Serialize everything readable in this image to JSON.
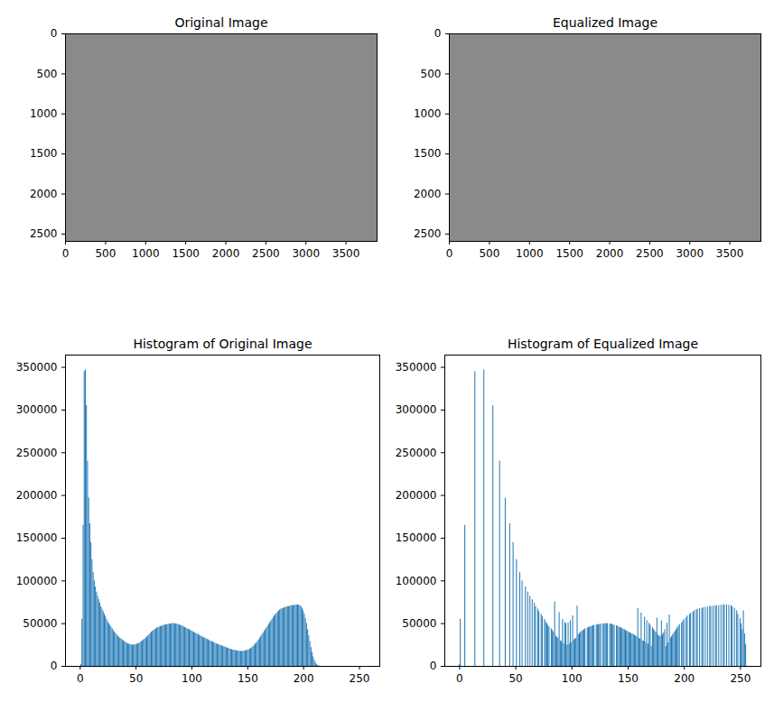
{
  "chart_data": [
    {
      "type": "image",
      "title": "Original Image",
      "xlim": [
        -0.5,
        3887.5
      ],
      "ylim": [
        2591.5,
        -0.5
      ],
      "xticks": [
        0,
        500,
        1000,
        1500,
        2000,
        2500,
        3000,
        3500
      ],
      "yticks": [
        0,
        500,
        1000,
        1500,
        2000,
        2500
      ]
    },
    {
      "type": "image",
      "title": "Equalized Image",
      "xlim": [
        -0.5,
        3887.5
      ],
      "ylim": [
        2591.5,
        -0.5
      ],
      "xticks": [
        0,
        500,
        1000,
        1500,
        2000,
        2500,
        3000,
        3500
      ],
      "yticks": [
        0,
        500,
        1000,
        1500,
        2000,
        2500
      ]
    },
    {
      "type": "bar",
      "title": "Histogram of Original Image",
      "color": "#1f77b4",
      "xlim": [
        -13.17,
        268.17
      ],
      "ylim": [
        0,
        364350
      ],
      "xticks": [
        0,
        50,
        100,
        150,
        200,
        250
      ],
      "yticks": [
        0,
        50000,
        100000,
        150000,
        200000,
        250000,
        300000,
        350000
      ],
      "x": [
        0,
        1,
        2,
        3,
        4,
        5,
        6,
        7,
        8,
        9,
        10,
        11,
        12,
        13,
        14,
        15,
        16,
        17,
        18,
        19,
        20,
        21,
        22,
        23,
        24,
        25,
        26,
        27,
        28,
        29,
        30,
        31,
        32,
        33,
        34,
        35,
        36,
        37,
        38,
        39,
        40,
        41,
        42,
        43,
        44,
        45,
        46,
        47,
        48,
        49,
        50,
        51,
        52,
        53,
        54,
        55,
        56,
        57,
        58,
        59,
        60,
        61,
        62,
        63,
        64,
        65,
        66,
        67,
        68,
        69,
        70,
        71,
        72,
        73,
        74,
        75,
        76,
        77,
        78,
        79,
        80,
        81,
        82,
        83,
        84,
        85,
        86,
        87,
        88,
        89,
        90,
        91,
        92,
        93,
        94,
        95,
        96,
        97,
        98,
        99,
        100,
        101,
        102,
        103,
        104,
        105,
        106,
        107,
        108,
        109,
        110,
        111,
        112,
        113,
        114,
        115,
        116,
        117,
        118,
        119,
        120,
        121,
        122,
        123,
        124,
        125,
        126,
        127,
        128,
        129,
        130,
        131,
        132,
        133,
        134,
        135,
        136,
        137,
        138,
        139,
        140,
        141,
        142,
        143,
        144,
        145,
        146,
        147,
        148,
        149,
        150,
        151,
        152,
        153,
        154,
        155,
        156,
        157,
        158,
        159,
        160,
        161,
        162,
        163,
        164,
        165,
        166,
        167,
        168,
        169,
        170,
        171,
        172,
        173,
        174,
        175,
        176,
        177,
        178,
        179,
        180,
        181,
        182,
        183,
        184,
        185,
        186,
        187,
        188,
        189,
        190,
        191,
        192,
        193,
        194,
        195,
        196,
        197,
        198,
        199,
        200,
        201,
        202,
        203,
        204,
        205,
        206,
        207,
        208,
        209,
        210,
        211,
        212,
        213,
        214,
        215,
        216,
        217,
        218,
        219,
        220,
        221,
        222,
        223,
        224,
        225,
        226,
        227,
        228,
        229,
        230,
        231,
        232,
        233,
        234,
        235,
        236,
        237,
        238,
        239,
        240,
        241,
        242,
        243,
        244,
        245,
        246,
        247,
        248,
        249,
        250,
        251,
        252,
        253,
        254,
        255
      ],
      "values": [
        0,
        2000,
        55000,
        165000,
        345000,
        347000,
        305000,
        240000,
        197000,
        167000,
        145000,
        125000,
        110000,
        100000,
        93000,
        87000,
        82000,
        78000,
        74000,
        70000,
        67000,
        64000,
        61000,
        58000,
        55000,
        52000,
        50000,
        48000,
        46000,
        44000,
        42000,
        40000,
        38500,
        37000,
        35500,
        34000,
        33000,
        32000,
        31000,
        30000,
        29000,
        28000,
        27000,
        26500,
        26000,
        25500,
        25000,
        25000,
        25000,
        25200,
        25500,
        26000,
        26500,
        27000,
        28000,
        29000,
        30000,
        31000,
        32000,
        33000,
        34500,
        36000,
        37000,
        38500,
        40000,
        41000,
        42000,
        43000,
        44000,
        45000,
        45500,
        46000,
        46500,
        47000,
        47500,
        48000,
        48500,
        48500,
        49000,
        49000,
        49500,
        49500,
        50000,
        50000,
        50000,
        50000,
        49500,
        49500,
        49000,
        48500,
        48000,
        47500,
        47000,
        46000,
        45500,
        45000,
        44000,
        43500,
        43000,
        42000,
        41500,
        40500,
        40000,
        39000,
        38500,
        38000,
        37000,
        36500,
        35500,
        35000,
        34000,
        33500,
        33000,
        32000,
        31500,
        31000,
        30000,
        29500,
        29000,
        28500,
        28000,
        27000,
        26500,
        26000,
        25500,
        25000,
        24500,
        24000,
        23500,
        23000,
        22500,
        22000,
        21500,
        21000,
        20500,
        20000,
        19500,
        19000,
        19000,
        18500,
        18500,
        18000,
        18000,
        17500,
        17500,
        17500,
        17500,
        18000,
        18000,
        18500,
        19000,
        19500,
        20000,
        21000,
        22000,
        23000,
        24500,
        26000,
        27500,
        29000,
        31000,
        33000,
        35000,
        37000,
        39000,
        41000,
        43000,
        45000,
        47000,
        49000,
        51000,
        53000,
        55000,
        57000,
        59000,
        60500,
        62000,
        63500,
        65000,
        66000,
        67000,
        67500,
        68000,
        68500,
        69000,
        69500,
        70000,
        70000,
        70500,
        71000,
        71000,
        71000,
        71500,
        71500,
        72000,
        72000,
        71500,
        71000,
        70000,
        68000,
        65000,
        61000,
        56000,
        50000,
        43000,
        36000,
        29000,
        22000,
        16000,
        11000,
        7000,
        4000,
        2000,
        1000,
        500,
        200,
        100,
        0,
        0,
        0,
        0,
        0,
        0,
        0,
        0,
        0,
        0,
        0,
        0,
        0,
        0,
        0,
        0,
        0,
        0,
        0,
        0,
        0,
        0,
        0,
        0,
        0,
        0,
        0,
        0,
        0,
        0,
        0,
        0,
        0,
        0,
        0,
        0,
        0,
        0,
        0
      ]
    },
    {
      "type": "bar",
      "title": "Histogram of Equalized Image",
      "color": "#1f77b4",
      "xlim": [
        -13.17,
        268.17
      ],
      "ylim": [
        0,
        364350
      ],
      "xticks": [
        0,
        50,
        100,
        150,
        200,
        250
      ],
      "yticks": [
        0,
        50000,
        100000,
        150000,
        200000,
        250000,
        300000,
        350000
      ],
      "x": [
        0,
        1,
        2,
        3,
        4,
        5,
        6,
        7,
        8,
        9,
        10,
        11,
        12,
        13,
        14,
        15,
        16,
        17,
        18,
        19,
        20,
        21,
        22,
        23,
        24,
        25,
        26,
        27,
        28,
        29,
        30,
        31,
        32,
        33,
        34,
        35,
        36,
        37,
        38,
        39,
        40,
        41,
        42,
        43,
        44,
        45,
        46,
        47,
        48,
        49,
        50,
        51,
        52,
        53,
        54,
        55,
        56,
        57,
        58,
        59,
        60,
        61,
        62,
        63,
        64,
        65,
        66,
        67,
        68,
        69,
        70,
        71,
        72,
        73,
        74,
        75,
        76,
        77,
        78,
        79,
        80,
        81,
        82,
        83,
        84,
        85,
        86,
        87,
        88,
        89,
        90,
        91,
        92,
        93,
        94,
        95,
        96,
        97,
        98,
        99,
        100,
        101,
        102,
        103,
        104,
        105,
        106,
        107,
        108,
        109,
        110,
        111,
        112,
        113,
        114,
        115,
        116,
        117,
        118,
        119,
        120,
        121,
        122,
        123,
        124,
        125,
        126,
        127,
        128,
        129,
        130,
        131,
        132,
        133,
        134,
        135,
        136,
        137,
        138,
        139,
        140,
        141,
        142,
        143,
        144,
        145,
        146,
        147,
        148,
        149,
        150,
        151,
        152,
        153,
        154,
        155,
        156,
        157,
        158,
        159,
        160,
        161,
        162,
        163,
        164,
        165,
        166,
        167,
        168,
        169,
        170,
        171,
        172,
        173,
        174,
        175,
        176,
        177,
        178,
        179,
        180,
        181,
        182,
        183,
        184,
        185,
        186,
        187,
        188,
        189,
        190,
        191,
        192,
        193,
        194,
        195,
        196,
        197,
        198,
        199,
        200,
        201,
        202,
        203,
        204,
        205,
        206,
        207,
        208,
        209,
        210,
        211,
        212,
        213,
        214,
        215,
        216,
        217,
        218,
        219,
        220,
        221,
        222,
        223,
        224,
        225,
        226,
        227,
        228,
        229,
        230,
        231,
        232,
        233,
        234,
        235,
        236,
        237,
        238,
        239,
        240,
        241,
        242,
        243,
        244,
        245,
        246,
        247,
        248,
        249,
        250,
        251,
        252,
        253,
        254,
        255
      ],
      "values": [
        2000,
        55000,
        0,
        0,
        0,
        165000,
        0,
        0,
        0,
        0,
        0,
        0,
        0,
        0,
        345000,
        0,
        0,
        0,
        0,
        0,
        0,
        0,
        347000,
        0,
        0,
        0,
        0,
        0,
        0,
        0,
        305000,
        0,
        0,
        0,
        0,
        0,
        240000,
        0,
        0,
        0,
        0,
        197000,
        0,
        0,
        0,
        167000,
        0,
        0,
        145000,
        0,
        0,
        125000,
        0,
        0,
        110000,
        0,
        100000,
        0,
        0,
        93000,
        0,
        87000,
        0,
        82000,
        0,
        78000,
        0,
        74000,
        70000,
        0,
        67000,
        64000,
        0,
        61000,
        58000,
        0,
        55000,
        52000,
        50000,
        48000,
        46000,
        0,
        44000,
        42000,
        40000,
        75500,
        35500,
        34000,
        33000,
        63000,
        30000,
        29000,
        55000,
        26500,
        51500,
        50000,
        25000,
        50700,
        26000,
        53500,
        28000,
        59000,
        31000,
        32000,
        33000,
        70500,
        37000,
        38500,
        40000,
        41000,
        42000,
        43000,
        44000,
        0,
        45000,
        45500,
        46000,
        46500,
        47000,
        47500,
        48000,
        0,
        48500,
        48500,
        49000,
        49000,
        49500,
        0,
        49500,
        50000,
        50000,
        50000,
        50000,
        0,
        49500,
        49500,
        49000,
        48500,
        48000,
        0,
        47500,
        47000,
        46000,
        45500,
        45000,
        44000,
        43500,
        43000,
        42000,
        41500,
        40500,
        40000,
        39000,
        38500,
        38000,
        37000,
        36500,
        35500,
        35000,
        67500,
        33000,
        32000,
        62500,
        30000,
        29500,
        57500,
        28000,
        53500,
        26000,
        50500,
        48500,
        23500,
        45500,
        43500,
        41500,
        39500,
        56500,
        36500,
        35500,
        35000,
        53500,
        37500,
        39500,
        43000,
        23000,
        50500,
        27500,
        60000,
        33000,
        35000,
        37000,
        39000,
        41000,
        43000,
        45000,
        47000,
        49000,
        0,
        51000,
        53000,
        55000,
        0,
        57000,
        59000,
        0,
        60500,
        62000,
        0,
        63500,
        65000,
        0,
        66000,
        67000,
        0,
        67500,
        0,
        68000,
        68500,
        0,
        69000,
        0,
        69500,
        0,
        70000,
        70000,
        0,
        70500,
        0,
        71000,
        71000,
        0,
        71000,
        0,
        71500,
        0,
        71500,
        72000,
        0,
        72000,
        0,
        71500,
        0,
        71000,
        70000,
        0,
        68000,
        0,
        65000,
        61000,
        0,
        56000,
        50000,
        43000,
        65000,
        38000,
        25800
      ]
    }
  ]
}
